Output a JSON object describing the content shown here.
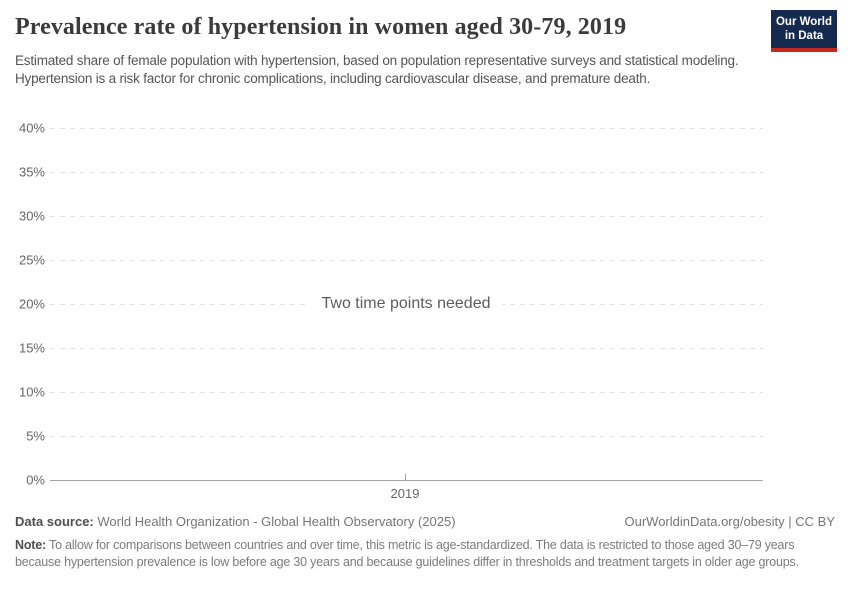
{
  "header": {
    "title": "Prevalence rate of hypertension in women aged 30-79, 2019",
    "subtitle": "Estimated share of female population with hypertension, based on population representative surveys and statistical modeling. Hypertension is a risk factor for chronic complications, including cardiovascular disease, and premature death.",
    "logo": {
      "line1": "Our World",
      "line2": "in Data",
      "bg_color": "#152a4f",
      "accent_color": "#c5281c"
    }
  },
  "chart_data": {
    "type": "line",
    "title": "Prevalence rate of hypertension in women aged 30-79, 2019",
    "series": [],
    "empty_state_message": "Two time points needed",
    "x_tick_labels": [
      "2019"
    ],
    "y_tick_labels": [
      "0%",
      "5%",
      "10%",
      "15%",
      "20%",
      "25%",
      "30%",
      "35%",
      "40%"
    ],
    "ylim": [
      0,
      40
    ],
    "xlabel": "",
    "ylabel": "",
    "grid": "horizontal-dashed",
    "grid_color": "#e2e2e2",
    "axis_color": "#a4a4a4"
  },
  "footer": {
    "datasource_label": "Data source:",
    "datasource_value": "World Health Organization - Global Health Observatory (2025)",
    "rights": "OurWorldinData.org/obesity | CC BY",
    "note_label": "Note:",
    "note_value": "To allow for comparisons between countries and over time, this metric is age-standardized. The data is restricted to those aged 30–79 years because hypertension prevalence is low before age 30 years and because guidelines differ in thresholds and treatment targets in older age groups."
  }
}
